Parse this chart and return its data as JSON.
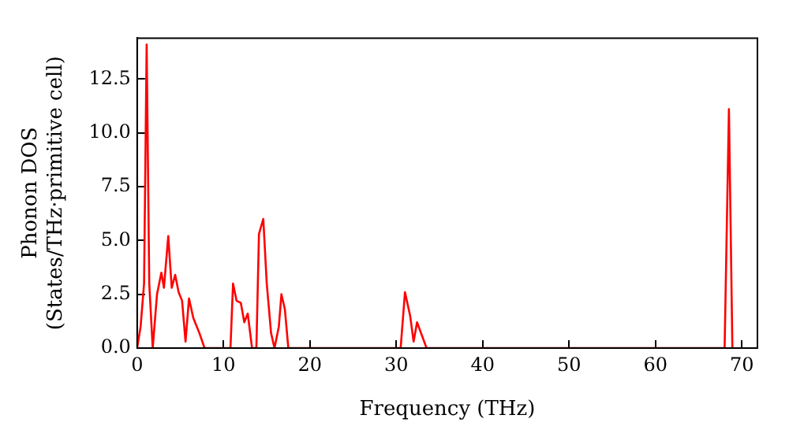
{
  "chart_data": {
    "type": "line",
    "xlabel": "Frequency (THz)",
    "ylabel": "Phonon DOS\n(States/THz·primitive cell)",
    "xlim": [
      0,
      71.8
    ],
    "ylim": [
      0,
      14.4
    ],
    "xticks": [
      0,
      10,
      20,
      30,
      40,
      50,
      60,
      70
    ],
    "yticks": [
      {
        "value": 0,
        "label": "0.0"
      },
      {
        "value": 2.5,
        "label": "2.5"
      },
      {
        "value": 5,
        "label": "5.0"
      },
      {
        "value": 7.5,
        "label": "7.5"
      },
      {
        "value": 10,
        "label": "10.0"
      },
      {
        "value": 12.5,
        "label": "12.5"
      }
    ],
    "grid": false,
    "legend": false,
    "series": [
      {
        "color": "#ff0000",
        "x": [
          0,
          0.4,
          0.8,
          1.1,
          1.4,
          1.8,
          2.3,
          2.8,
          3.1,
          3.6,
          4.0,
          4.4,
          4.8,
          5.2,
          5.6,
          6.0,
          6.5,
          7.2,
          7.8,
          10.8,
          11.1,
          11.5,
          12.0,
          12.4,
          12.8,
          13.3,
          13.8,
          14.1,
          14.6,
          15.0,
          15.5,
          15.9,
          16.4,
          16.7,
          17.1,
          17.5,
          30.5,
          31.0,
          31.6,
          32.0,
          32.4,
          33.5,
          68.0,
          68.5,
          68.9
        ],
        "values": [
          0,
          1.0,
          3.0,
          14.1,
          3.0,
          0,
          2.5,
          3.5,
          2.8,
          5.2,
          2.8,
          3.4,
          2.6,
          2.2,
          0.3,
          2.3,
          1.4,
          0.7,
          0,
          0,
          3.0,
          2.2,
          2.1,
          1.2,
          1.6,
          0,
          0,
          5.3,
          6.0,
          3.0,
          0.7,
          0,
          1.0,
          2.5,
          1.8,
          0,
          0,
          2.6,
          1.5,
          0.3,
          1.2,
          0,
          0,
          11.1,
          0
        ]
      }
    ]
  }
}
